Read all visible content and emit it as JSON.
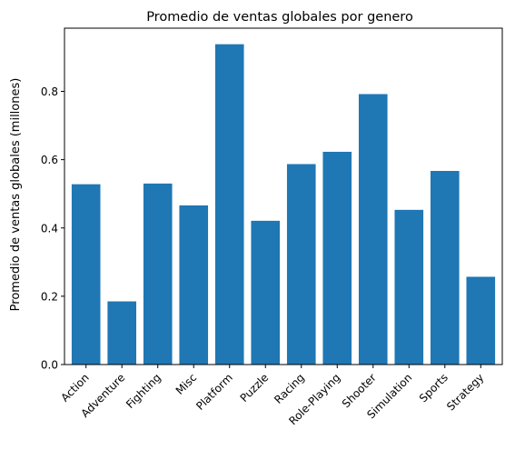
{
  "chart_data": {
    "type": "bar",
    "title": "Promedio de ventas globales por genero",
    "xlabel": "",
    "ylabel": "Promedio de ventas globales (millones)",
    "categories": [
      "Action",
      "Adventure",
      "Fighting",
      "Misc",
      "Platform",
      "Puzzle",
      "Racing",
      "Role-Playing",
      "Shooter",
      "Simulation",
      "Sports",
      "Strategy"
    ],
    "values": [
      0.528,
      0.185,
      0.53,
      0.466,
      0.938,
      0.421,
      0.587,
      0.623,
      0.792,
      0.453,
      0.567,
      0.257
    ],
    "ylim": [
      0,
      0.985
    ],
    "yticks": [
      0.0,
      0.2,
      0.4,
      0.6,
      0.8
    ],
    "ytick_labels": [
      "0.0",
      "0.2",
      "0.4",
      "0.6",
      "0.8"
    ],
    "grid": false,
    "bar_color": "#1f77b4"
  }
}
